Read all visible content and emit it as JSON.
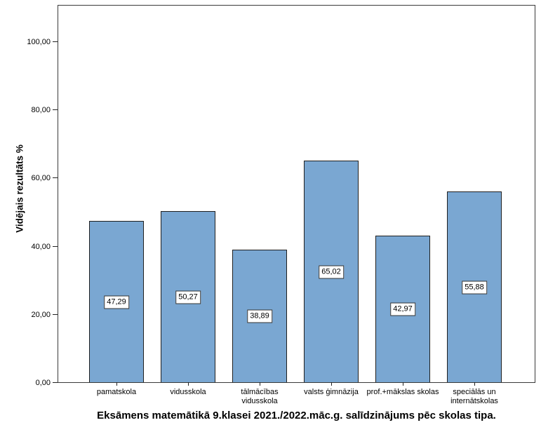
{
  "chart_data": {
    "type": "bar",
    "title": "Eksāmens matemātikā 9.klasei 2021./2022.māc.g. salīdzinājums pēc skolas tipa.",
    "ylabel": "Vidējais rezultāts %",
    "xlabel": "",
    "categories": [
      "pamatskola",
      "vidusskola",
      "tālmācības\nvidusskola",
      "valsts ģimnāzija",
      "prof.+mākslas skolas",
      "speciālās un\ninternātskolas"
    ],
    "values": [
      47.29,
      50.27,
      38.89,
      65.02,
      42.97,
      55.88
    ],
    "value_labels": [
      "47,29",
      "50,27",
      "38,89",
      "65,02",
      "42,97",
      "55,88"
    ],
    "yticks": [
      0,
      20,
      40,
      60,
      80,
      100
    ],
    "ytick_labels": [
      "0,00",
      "20,00",
      "40,00",
      "60,00",
      "80,00",
      "100,00"
    ],
    "ylim": [
      0,
      110
    ],
    "grid": false,
    "legend": "none",
    "decimal_separator": ",",
    "bar_color": "#7AA7D2",
    "bar_border_color": "#1f1f1f",
    "value_box_bg": "#ffffff",
    "value_box_border": "#333333"
  }
}
